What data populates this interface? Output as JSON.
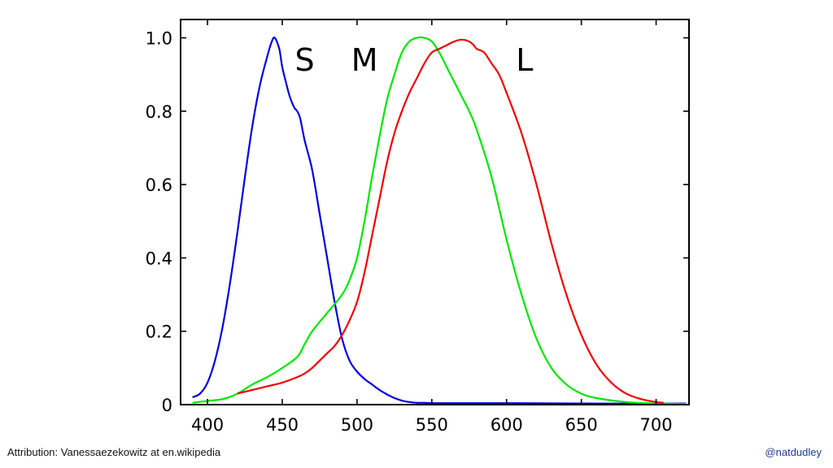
{
  "slide": {
    "attribution": "Attribution: Vanessaezekowitz at en.wikipedia",
    "handle": "@natdudley",
    "handle_color": "#1f3a93"
  },
  "chart_data": {
    "type": "line",
    "title": "",
    "xlabel": "",
    "ylabel": "",
    "xlim": [
      382,
      722
    ],
    "ylim": [
      0,
      1.05
    ],
    "grid": false,
    "x_ticks": [
      400,
      450,
      500,
      550,
      600,
      650,
      700
    ],
    "x_tick_labels": [
      "400",
      "450",
      "500",
      "550",
      "600",
      "650",
      "700"
    ],
    "y_ticks": [
      0,
      0.2,
      0.4,
      0.6,
      0.8,
      1.0
    ],
    "y_tick_labels": [
      "0",
      "0.2",
      "0.4",
      "0.6",
      "0.8",
      "1.0"
    ],
    "annotations": [
      {
        "text": "S",
        "x": 465,
        "y": 0.91
      },
      {
        "text": "M",
        "x": 505,
        "y": 0.91
      },
      {
        "text": "L",
        "x": 612,
        "y": 0.91
      }
    ],
    "series": [
      {
        "name": "S",
        "color": "#0000dd",
        "x": [
          390,
          395,
          400,
          405,
          410,
          415,
          420,
          425,
          430,
          435,
          440,
          443,
          445,
          448,
          450,
          453,
          455,
          458,
          460,
          462,
          465,
          470,
          475,
          480,
          485,
          490,
          495,
          500,
          505,
          510,
          515,
          520,
          525,
          530,
          535,
          540,
          545,
          550,
          560,
          580,
          600,
          650,
          700,
          720
        ],
        "values": [
          0.02,
          0.03,
          0.06,
          0.12,
          0.21,
          0.33,
          0.47,
          0.62,
          0.76,
          0.87,
          0.95,
          0.99,
          1.0,
          0.97,
          0.92,
          0.87,
          0.84,
          0.81,
          0.8,
          0.78,
          0.72,
          0.64,
          0.52,
          0.4,
          0.28,
          0.18,
          0.12,
          0.09,
          0.07,
          0.055,
          0.04,
          0.028,
          0.018,
          0.011,
          0.007,
          0.005,
          0.005,
          0.004,
          0.004,
          0.004,
          0.004,
          0.003,
          0.003,
          0.003
        ]
      },
      {
        "name": "M",
        "color": "#00e600",
        "x": [
          390,
          400,
          410,
          420,
          430,
          440,
          450,
          460,
          465,
          470,
          480,
          490,
          495,
          500,
          505,
          510,
          515,
          520,
          525,
          530,
          535,
          540,
          545,
          550,
          555,
          560,
          565,
          570,
          575,
          580,
          590,
          600,
          610,
          620,
          630,
          640,
          650,
          660,
          680,
          700,
          720
        ],
        "values": [
          0.005,
          0.01,
          0.015,
          0.03,
          0.055,
          0.075,
          0.1,
          0.13,
          0.165,
          0.2,
          0.25,
          0.3,
          0.34,
          0.4,
          0.5,
          0.62,
          0.73,
          0.83,
          0.9,
          0.96,
          0.99,
          1.0,
          1.0,
          0.99,
          0.96,
          0.92,
          0.88,
          0.84,
          0.8,
          0.75,
          0.62,
          0.45,
          0.3,
          0.18,
          0.1,
          0.055,
          0.03,
          0.018,
          0.007,
          0.003,
          0.002
        ]
      },
      {
        "name": "L",
        "color": "#ee0000",
        "x": [
          420,
          430,
          440,
          450,
          460,
          465,
          470,
          475,
          480,
          485,
          490,
          495,
          500,
          505,
          510,
          515,
          520,
          525,
          530,
          535,
          540,
          545,
          550,
          555,
          560,
          565,
          570,
          575,
          578,
          580,
          585,
          590,
          595,
          600,
          610,
          620,
          630,
          640,
          650,
          660,
          670,
          680,
          690,
          700,
          705
        ],
        "values": [
          0.03,
          0.04,
          0.05,
          0.06,
          0.075,
          0.085,
          0.1,
          0.12,
          0.14,
          0.16,
          0.19,
          0.23,
          0.28,
          0.36,
          0.46,
          0.56,
          0.66,
          0.74,
          0.8,
          0.85,
          0.89,
          0.93,
          0.96,
          0.97,
          0.98,
          0.99,
          0.995,
          0.99,
          0.98,
          0.97,
          0.96,
          0.93,
          0.9,
          0.85,
          0.74,
          0.6,
          0.44,
          0.3,
          0.19,
          0.11,
          0.06,
          0.03,
          0.015,
          0.007,
          0.005
        ]
      }
    ]
  }
}
